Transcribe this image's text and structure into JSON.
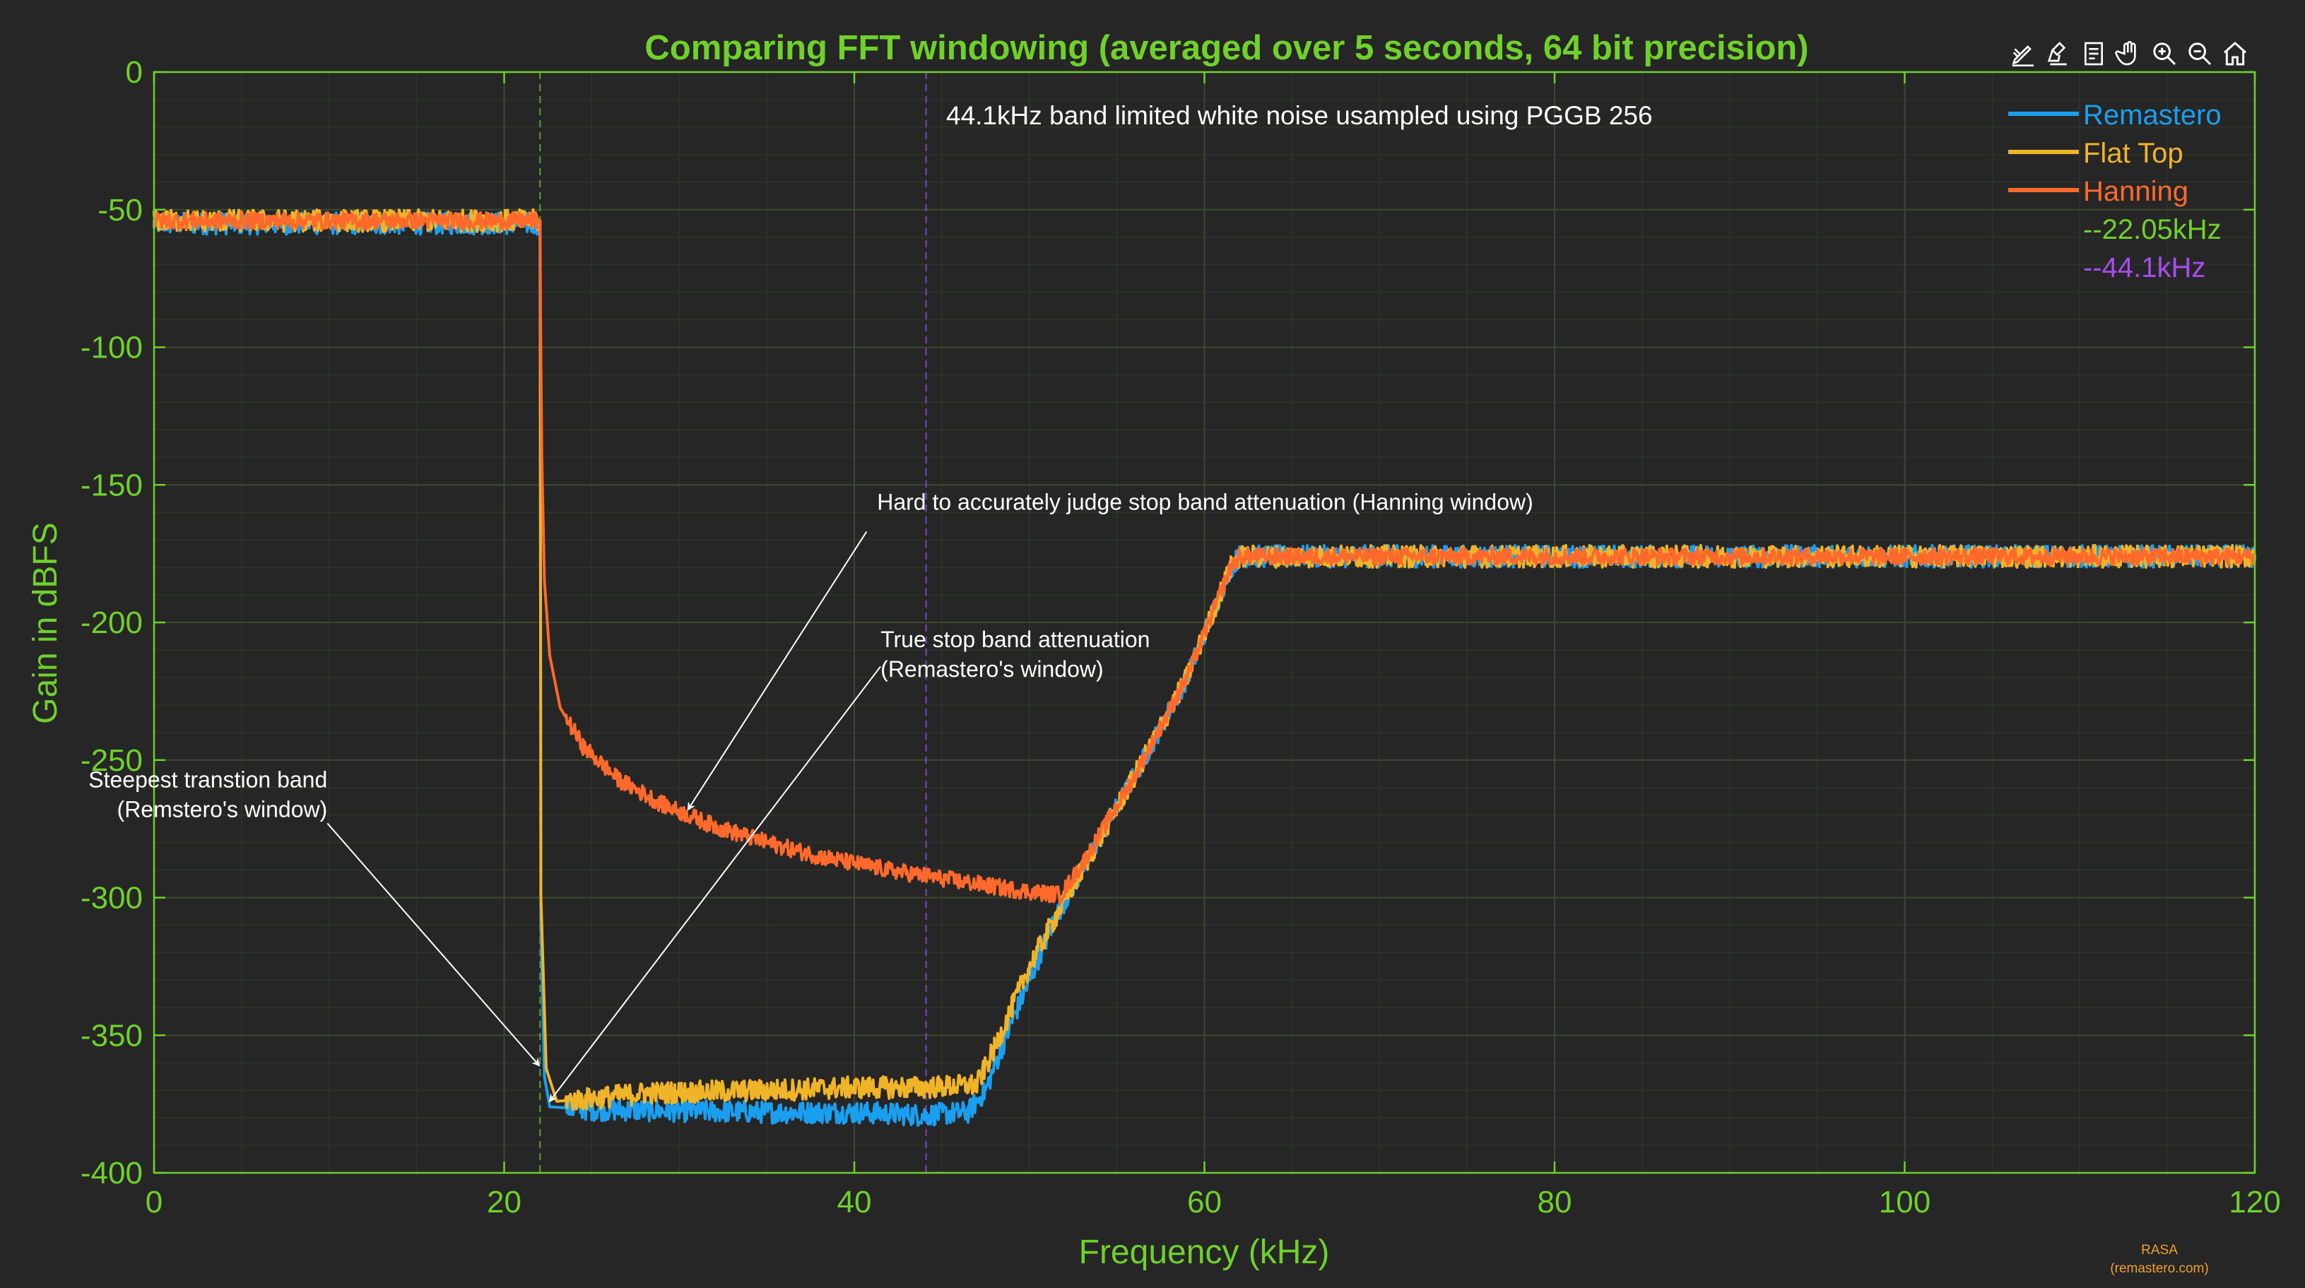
{
  "colors": {
    "background": "#262626",
    "axis_text": "#6fd12a",
    "grid_major": "#3a4a2f",
    "grid_minor": "#2f342b",
    "remastero": "#1a9ff0",
    "flat_top": "#f0b429",
    "hanning": "#ff6a2c",
    "marker_22": "#6fd12a",
    "marker_44": "#a64cf0",
    "annotation": "#ffffff"
  },
  "toolbar": {
    "icons": [
      "edit-plot-icon",
      "brush-icon",
      "data-cursor-icon",
      "pan-hand-icon",
      "zoom-in-icon",
      "zoom-out-icon",
      "home-icon"
    ]
  },
  "chart_data": {
    "type": "line",
    "title": "Comparing FFT windowing (averaged over 5 seconds, 64 bit precision)",
    "subtitle": "44.1kHz band limited white noise usampled using PGGB 256",
    "xlabel": "Frequency (kHz)",
    "ylabel": "Gain in dBFS",
    "xlim": [
      0,
      120
    ],
    "ylim": [
      -400,
      0
    ],
    "x_ticks": [
      0,
      20,
      40,
      60,
      80,
      100,
      120
    ],
    "y_ticks": [
      0,
      -50,
      -100,
      -150,
      -200,
      -250,
      -300,
      -350,
      -400
    ],
    "grid": true,
    "minor_grid": true,
    "legend_position": "top-right",
    "legend": [
      "Remastero",
      "Flat Top",
      "Hanning",
      "--22.05kHz",
      "--44.1kHz"
    ],
    "series": [
      {
        "name": "Remastero",
        "color": "#1a9ff0",
        "noise_db": 4,
        "points": [
          [
            0,
            -55
          ],
          [
            22.05,
            -55
          ],
          [
            22.1,
            -310
          ],
          [
            22.3,
            -365
          ],
          [
            22.6,
            -376
          ],
          [
            25,
            -377
          ],
          [
            35,
            -378
          ],
          [
            40,
            -378
          ],
          [
            44,
            -379
          ],
          [
            46.5,
            -378
          ],
          [
            47.5,
            -370
          ],
          [
            49,
            -345
          ],
          [
            50,
            -330
          ],
          [
            51.5,
            -307
          ],
          [
            53,
            -290
          ],
          [
            56,
            -256
          ],
          [
            59,
            -220
          ],
          [
            61.5,
            -180
          ],
          [
            62,
            -176
          ],
          [
            120,
            -176
          ]
        ]
      },
      {
        "name": "Flat Top",
        "color": "#f0b429",
        "noise_db": 4,
        "points": [
          [
            0,
            -54
          ],
          [
            22.05,
            -54
          ],
          [
            22.1,
            -300
          ],
          [
            22.4,
            -362
          ],
          [
            23,
            -374
          ],
          [
            25,
            -373
          ],
          [
            28,
            -371
          ],
          [
            35,
            -370
          ],
          [
            40,
            -369
          ],
          [
            44,
            -369
          ],
          [
            47,
            -368
          ],
          [
            48,
            -355
          ],
          [
            49,
            -340
          ],
          [
            50,
            -325
          ],
          [
            51.5,
            -307
          ],
          [
            53,
            -290
          ],
          [
            56,
            -256
          ],
          [
            59,
            -220
          ],
          [
            61.5,
            -180
          ],
          [
            62,
            -176
          ],
          [
            120,
            -176
          ]
        ]
      },
      {
        "name": "Hanning",
        "color": "#ff6a2c",
        "noise_db": 3,
        "points": [
          [
            0,
            -54
          ],
          [
            22.05,
            -54
          ],
          [
            22.08,
            -90
          ],
          [
            22.15,
            -140
          ],
          [
            22.3,
            -185
          ],
          [
            22.6,
            -212
          ],
          [
            23.2,
            -231
          ],
          [
            24.5,
            -245
          ],
          [
            26.5,
            -257
          ],
          [
            29,
            -266
          ],
          [
            32,
            -274
          ],
          [
            35,
            -280
          ],
          [
            38,
            -285
          ],
          [
            42,
            -290
          ],
          [
            46,
            -294
          ],
          [
            49,
            -297
          ],
          [
            51,
            -298.5
          ],
          [
            51.8,
            -299
          ],
          [
            53,
            -288
          ],
          [
            56,
            -256
          ],
          [
            59,
            -220
          ],
          [
            61.5,
            -180
          ],
          [
            62,
            -176
          ],
          [
            120,
            -176
          ]
        ]
      }
    ],
    "markers": [
      {
        "name": "--22.05kHz",
        "x": 22.05,
        "color": "#6fd12a"
      },
      {
        "name": "--44.1kHz",
        "x": 44.1,
        "color": "#a64cf0"
      }
    ],
    "annotations": [
      {
        "lines": [
          "Hard to accurately judge stop band attenuation (Hanning window)"
        ],
        "align": "left",
        "label_x": 41.3,
        "label_y": -159,
        "arrow_from": [
          40.7,
          -167
        ],
        "arrow_to": [
          30.5,
          -268
        ]
      },
      {
        "lines": [
          "True stop band attenuation",
          "(Remastero's window)"
        ],
        "align": "left",
        "label_x": 41.5,
        "label_y": -209,
        "arrow_from": [
          41.5,
          -216
        ],
        "arrow_to": [
          22.6,
          -374
        ]
      },
      {
        "lines": [
          "Steepest transtion band",
          "(Remstero's window)"
        ],
        "align": "right",
        "label_x": 9.9,
        "label_y": -260,
        "arrow_from": [
          9.9,
          -273
        ],
        "arrow_to": [
          22.0,
          -361
        ]
      }
    ],
    "watermark": [
      "RASA",
      "(remastero.com)"
    ]
  }
}
